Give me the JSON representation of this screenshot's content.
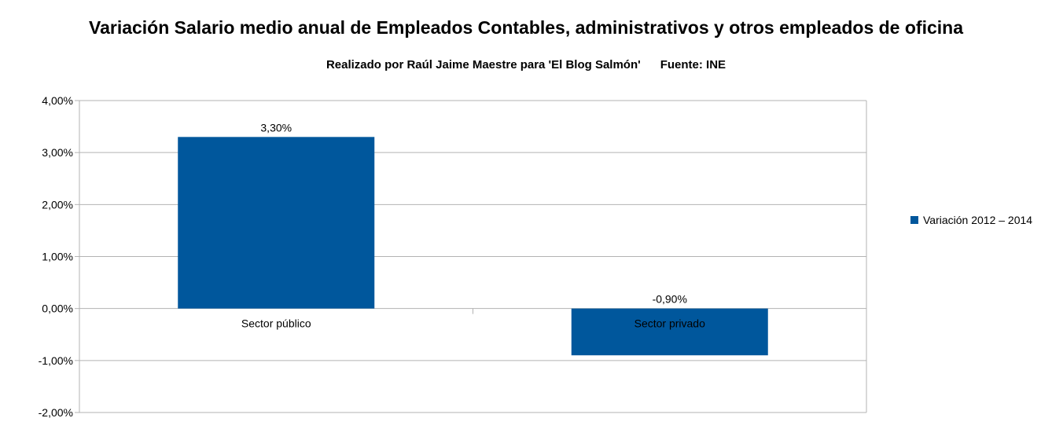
{
  "colors": {
    "bar": "#00579c",
    "grid": "#b3b3b3",
    "axis": "#b3b3b3"
  },
  "chart_data": {
    "type": "bar",
    "title": "Variación Salario medio anual de Empleados Contables, administrativos y otros empleados de oficina",
    "subtitle": "Realizado por Raúl Jaime Maestre para 'El Blog Salmón'      Fuente: INE",
    "categories": [
      "Sector público",
      "Sector privado"
    ],
    "series": [
      {
        "name": "Variación 2012 – 2014",
        "values": [
          3.3,
          -0.9
        ]
      }
    ],
    "data_labels": [
      "3,30%",
      "-0,90%"
    ],
    "ylim": [
      -2,
      4
    ],
    "yticks": [
      4,
      3,
      2,
      1,
      0,
      -1,
      -2
    ],
    "ytick_labels": [
      "4,00%",
      "3,00%",
      "2,00%",
      "1,00%",
      "0,00%",
      "-1,00%",
      "-2,00%"
    ],
    "grid": true,
    "legend_position": "right"
  }
}
